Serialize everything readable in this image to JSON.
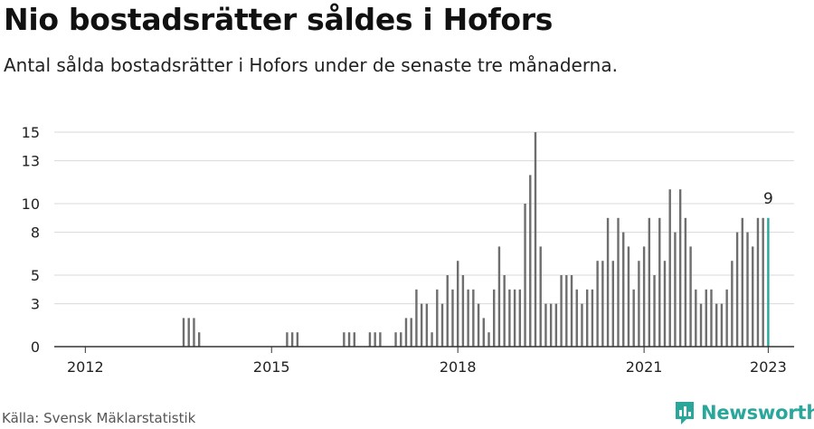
{
  "header": {
    "title": "Nio bostadsrätter såldes i Hofors",
    "subtitle": "Antal sålda bostadsrätter i Hofors under de senaste tre månaderna."
  },
  "footer": {
    "source": "Källa: Svensk Mäklarstatistik",
    "brand": "Newsworthy"
  },
  "colors": {
    "bar": "#6e6e6e",
    "highlight": "#2aa79b",
    "grid": "#d9d9d9",
    "axis": "#333333",
    "brand": "#2aa79b"
  },
  "icons": {
    "brand_logo": "bar-chart-logo-icon"
  },
  "chart_data": {
    "type": "bar",
    "title": "Nio bostadsrätter såldes i Hofors",
    "subtitle": "Antal sålda bostadsrätter i Hofors under de senaste tre månaderna.",
    "xlabel": "",
    "ylabel": "",
    "ylim": [
      0,
      15
    ],
    "yticks": [
      0,
      3,
      5,
      8,
      10,
      13,
      15
    ],
    "xticks": [
      "2012",
      "2015",
      "2018",
      "2021",
      "2023"
    ],
    "xlim": [
      "2011-07",
      "2023-06"
    ],
    "grid": true,
    "highlight": {
      "date": "2023-01",
      "label": "9"
    },
    "series": [
      {
        "x": [
          "2013-08",
          "2013-09",
          "2013-10",
          "2013-11",
          "2015-04",
          "2015-05",
          "2015-06",
          "2016-03",
          "2016-04",
          "2016-05",
          "2016-08",
          "2016-09",
          "2016-10",
          "2017-01",
          "2017-02",
          "2017-03",
          "2017-04",
          "2017-05",
          "2017-06",
          "2017-07",
          "2017-08",
          "2017-09",
          "2017-10",
          "2017-11",
          "2017-12",
          "2018-01",
          "2018-02",
          "2018-03",
          "2018-04",
          "2018-05",
          "2018-06",
          "2018-07",
          "2018-08",
          "2018-09",
          "2018-10",
          "2018-11",
          "2018-12",
          "2019-01",
          "2019-02",
          "2019-03",
          "2019-04",
          "2019-05",
          "2019-06",
          "2019-07",
          "2019-08",
          "2019-09",
          "2019-10",
          "2019-11",
          "2019-12",
          "2020-01",
          "2020-02",
          "2020-03",
          "2020-04",
          "2020-05",
          "2020-06",
          "2020-07",
          "2020-08",
          "2020-09",
          "2020-10",
          "2020-11",
          "2020-12",
          "2021-01",
          "2021-02",
          "2021-03",
          "2021-04",
          "2021-05",
          "2021-06",
          "2021-07",
          "2021-08",
          "2021-09",
          "2021-10",
          "2021-11",
          "2021-12",
          "2022-01",
          "2022-02",
          "2022-03",
          "2022-04",
          "2022-05",
          "2022-06",
          "2022-07",
          "2022-08",
          "2022-09",
          "2022-10",
          "2022-11",
          "2022-12",
          "2023-01"
        ],
        "values": [
          2,
          2,
          2,
          1,
          1,
          1,
          1,
          1,
          1,
          1,
          1,
          1,
          1,
          1,
          1,
          2,
          2,
          4,
          3,
          3,
          1,
          4,
          3,
          5,
          4,
          6,
          5,
          4,
          4,
          3,
          2,
          1,
          4,
          7,
          5,
          4,
          4,
          4,
          10,
          12,
          15,
          7,
          3,
          3,
          3,
          5,
          5,
          5,
          4,
          3,
          4,
          4,
          6,
          6,
          9,
          6,
          9,
          8,
          7,
          4,
          6,
          7,
          9,
          5,
          9,
          6,
          11,
          8,
          11,
          9,
          7,
          4,
          3,
          4,
          4,
          3,
          3,
          4,
          6,
          8,
          9,
          8,
          7,
          9,
          9,
          9
        ]
      }
    ]
  }
}
